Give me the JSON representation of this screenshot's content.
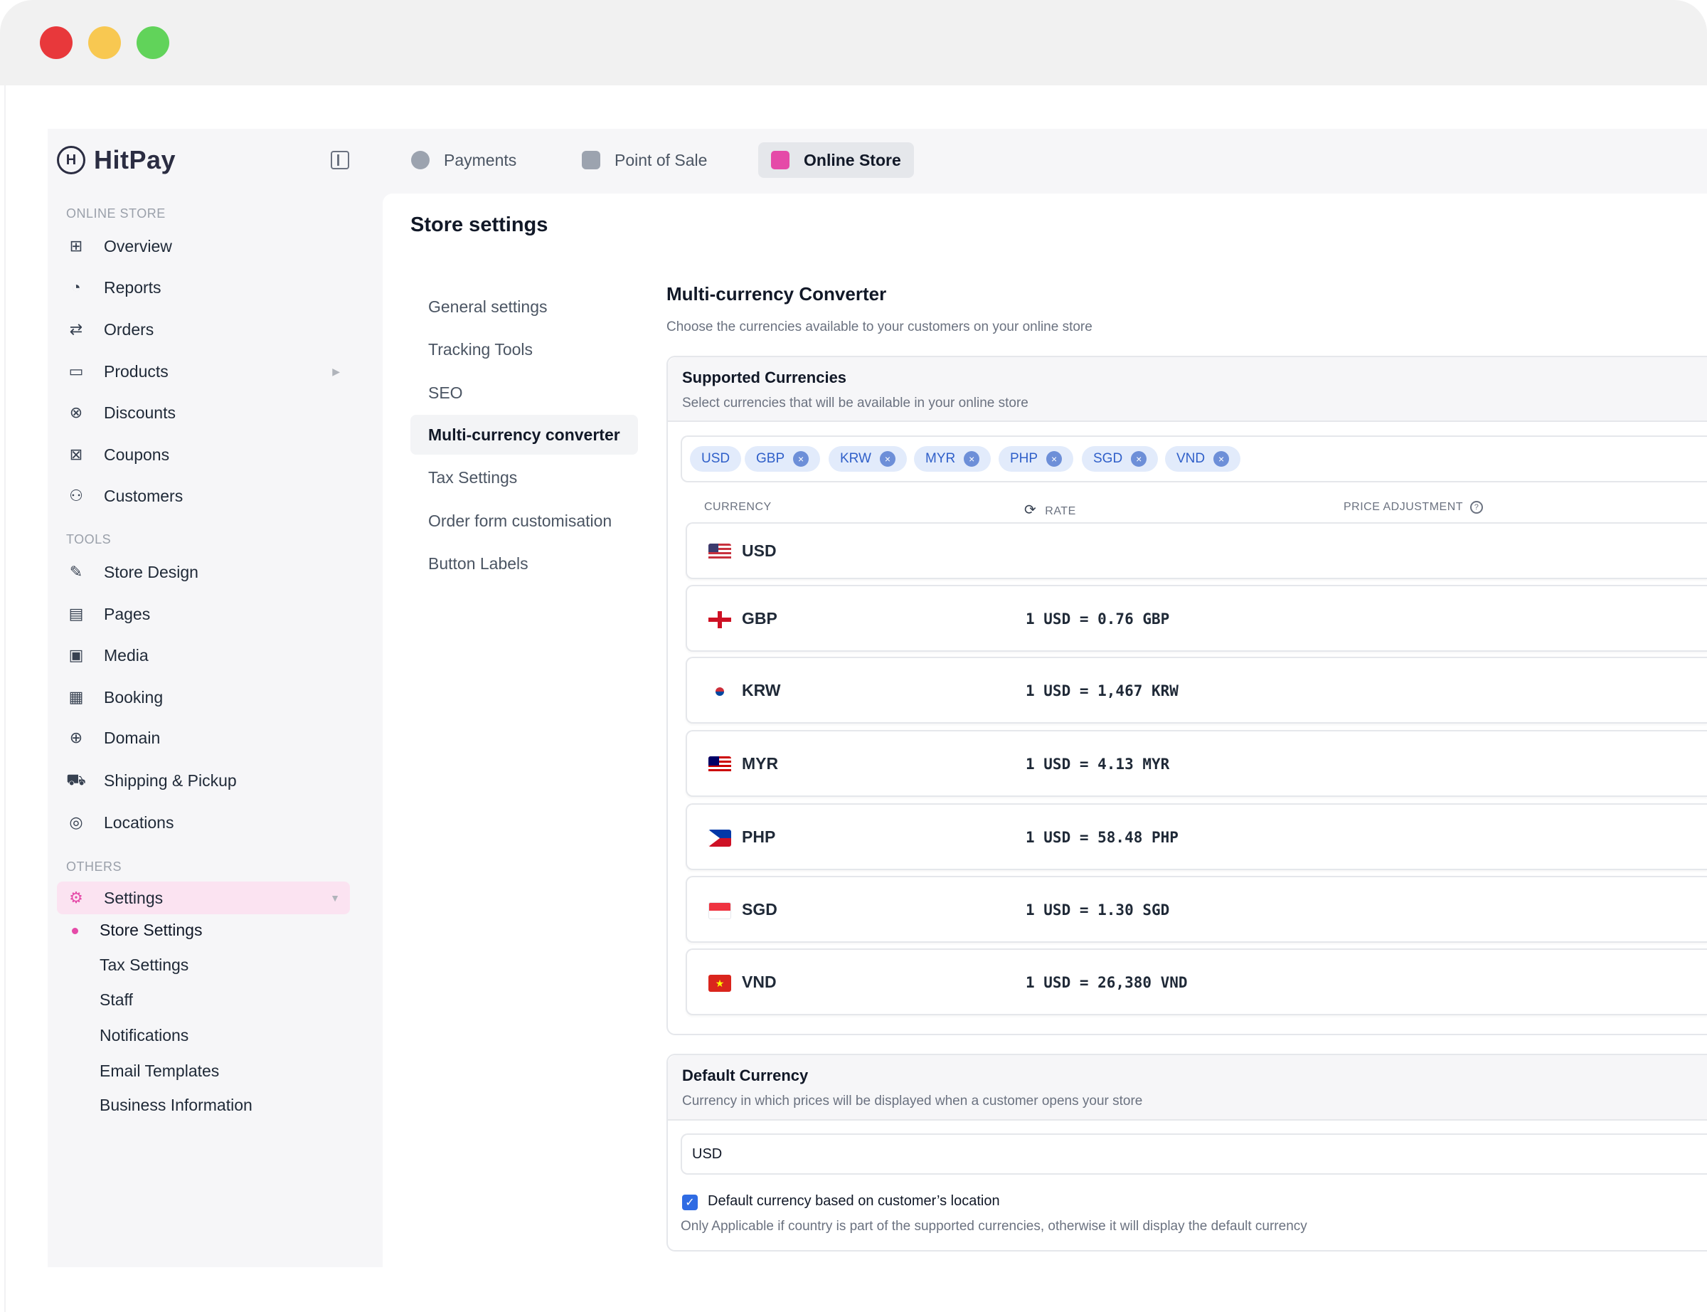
{
  "app": {
    "brand": "HitPay",
    "brand_mark": "H"
  },
  "top_tabs": [
    {
      "label": "Payments",
      "icon": "payments-icon",
      "color": "#9ca3af"
    },
    {
      "label": "Point of Sale",
      "icon": "pos-icon",
      "color": "#9ca3af"
    },
    {
      "label": "Online Store",
      "icon": "online-store-icon",
      "color": "#e54aa8"
    }
  ],
  "sidebar": {
    "section_online_store": "ONLINE STORE",
    "section_tools": "TOOLS",
    "section_others": "OTHERS",
    "items": [
      {
        "label": "Overview",
        "icon": "grid-icon",
        "glyph": "⊞"
      },
      {
        "label": "Reports",
        "icon": "chart-pie-icon",
        "glyph": "◔"
      },
      {
        "label": "Orders",
        "icon": "arrows-swap-icon",
        "glyph": "⇄"
      },
      {
        "label": "Products",
        "icon": "bag-icon",
        "glyph": "▭"
      },
      {
        "label": "Discounts",
        "icon": "discount-icon",
        "glyph": "⊗"
      },
      {
        "label": "Coupons",
        "icon": "coupon-icon",
        "glyph": "⊠"
      },
      {
        "label": "Customers",
        "icon": "users-icon",
        "glyph": "⚇"
      },
      {
        "label": "Store Design",
        "icon": "brush-icon",
        "glyph": "✎"
      },
      {
        "label": "Pages",
        "icon": "page-icon",
        "glyph": "▤"
      },
      {
        "label": "Media",
        "icon": "image-icon",
        "glyph": "▣"
      },
      {
        "label": "Booking",
        "icon": "calendar-icon",
        "glyph": "▦"
      },
      {
        "label": "Domain",
        "icon": "globe-icon",
        "glyph": "⊕"
      },
      {
        "label": "Shipping & Pickup",
        "icon": "truck-icon",
        "glyph": "⛟"
      },
      {
        "label": "Locations",
        "icon": "location-pin-icon",
        "glyph": "◎"
      },
      {
        "label": "Settings",
        "icon": "settings-gear-icon",
        "glyph": "⚙"
      }
    ],
    "settings_sub": [
      "Store Settings",
      "Tax Settings",
      "Staff",
      "Notifications",
      "Email Templates",
      "Business Information"
    ]
  },
  "page": {
    "title": "Store settings",
    "subnav": [
      "General settings",
      "Tracking Tools",
      "SEO",
      "Multi-currency converter",
      "Tax Settings",
      "Order form customisation",
      "Button Labels"
    ]
  },
  "converter": {
    "title": "Multi-currency Converter",
    "desc": "Choose the currencies available to your customers on your online store",
    "supported_title": "Supported Currencies",
    "supported_desc": "Select currencies that will be available in your online store",
    "chips": [
      "USD",
      "GBP",
      "KRW",
      "MYR",
      "PHP",
      "SGD",
      "VND"
    ],
    "chip_remove_glyph": "×",
    "col_currency": "CURRENCY",
    "col_rate": "RATE",
    "col_adjust": "PRICE ADJUSTMENT",
    "rows": [
      {
        "code": "USD",
        "rate": ""
      },
      {
        "code": "GBP",
        "rate": "1 USD = 0.76 GBP"
      },
      {
        "code": "KRW",
        "rate": "1 USD = 1,467 KRW"
      },
      {
        "code": "MYR",
        "rate": "1 USD = 4.13 MYR"
      },
      {
        "code": "PHP",
        "rate": "1 USD = 58.48 PHP"
      },
      {
        "code": "SGD",
        "rate": "1 USD = 1.30 SGD"
      },
      {
        "code": "VND",
        "rate": "1 USD = 26,380 VND"
      }
    ]
  },
  "default_currency": {
    "title": "Default Currency",
    "desc": "Currency in which prices will be displayed when a customer opens your store",
    "selected": "USD",
    "checkbox_label": "Default currency based on customer’s location",
    "checkbox_checked": true,
    "note": "Only Applicable if country is part of the supported currencies, otherwise it will display the default currency"
  },
  "colors": {
    "accent_pink": "#e54aa8",
    "chip_bg": "#e2ebfb",
    "chip_text": "#2f5fc9",
    "checkbox": "#2f6be3"
  }
}
